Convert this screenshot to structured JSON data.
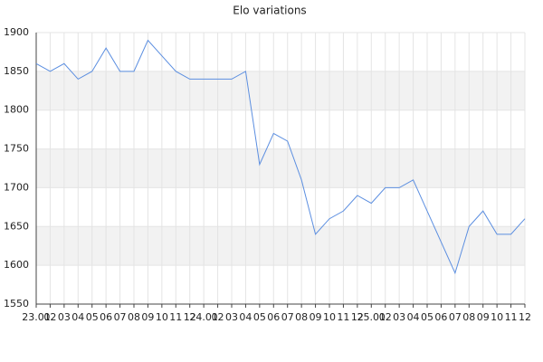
{
  "chart_data": {
    "type": "line",
    "title": "Elo variations",
    "categories": [
      "23.01",
      "02",
      "03",
      "04",
      "05",
      "06",
      "07",
      "08",
      "09",
      "10",
      "11",
      "12",
      "24.01",
      "02",
      "03",
      "04",
      "05",
      "06",
      "07",
      "08",
      "09",
      "10",
      "11",
      "12",
      "25.01",
      "02",
      "03",
      "04",
      "05",
      "06",
      "07",
      "08",
      "09",
      "10",
      "11",
      "12"
    ],
    "values": [
      1860,
      1850,
      1860,
      1840,
      1850,
      1880,
      1850,
      1850,
      1890,
      1870,
      1850,
      1840,
      1840,
      1840,
      1840,
      1850,
      1730,
      1770,
      1760,
      1710,
      1640,
      1660,
      1670,
      1690,
      1680,
      1700,
      1700,
      1710,
      1670,
      1630,
      1590,
      1650,
      1670,
      1640,
      1640,
      1660
    ],
    "color": "#5b8ee0",
    "ylim": [
      1550,
      1900
    ],
    "yticks": [
      1550,
      1600,
      1650,
      1700,
      1750,
      1800,
      1850,
      1900
    ],
    "grid": true
  }
}
